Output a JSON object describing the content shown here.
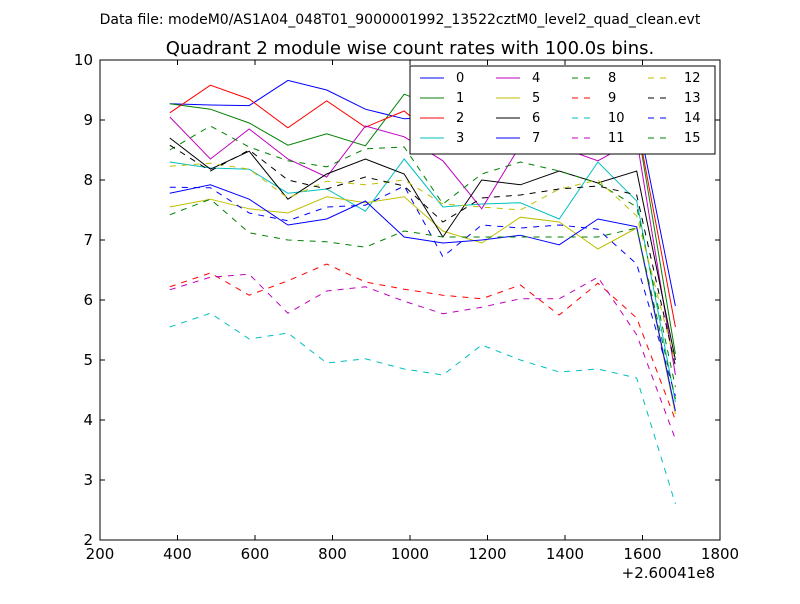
{
  "page": {
    "suptitle": "Data file: modeM0/AS1A04_048T01_9000001992_13522cztM0_level2_quad_clean.evt"
  },
  "chart_data": {
    "type": "line",
    "title": "Quadrant 2 module wise count rates with 100.0s bins.",
    "xlabel": "",
    "ylabel": "",
    "x_offset_label": "+2.60041e8",
    "xlim": [
      200,
      1800
    ],
    "ylim": [
      2,
      10
    ],
    "xticks": [
      200,
      400,
      600,
      800,
      1000,
      1200,
      1400,
      1600,
      1800
    ],
    "yticks": [
      2,
      3,
      4,
      5,
      6,
      7,
      8,
      9,
      10
    ],
    "grid": false,
    "legend": {
      "placement": "top-right",
      "columns": 4
    },
    "x": [
      380,
      485,
      585,
      685,
      785,
      885,
      985,
      1085,
      1185,
      1285,
      1385,
      1485,
      1585,
      1685
    ],
    "series": [
      {
        "name": "0",
        "color": "#0000ff",
        "dash": "solid",
        "values": [
          9.27,
          9.25,
          9.24,
          9.66,
          9.5,
          9.18,
          9.02,
          9.05,
          8.7,
          8.82,
          9.2,
          9.66,
          9.12,
          5.9
        ]
      },
      {
        "name": "1",
        "color": "#008000",
        "dash": "solid",
        "values": [
          9.27,
          9.18,
          8.95,
          8.58,
          8.77,
          8.57,
          9.43,
          9.18,
          8.53,
          8.95,
          9.0,
          8.9,
          8.95,
          5.1
        ]
      },
      {
        "name": "2",
        "color": "#ff0000",
        "dash": "solid",
        "values": [
          9.12,
          9.58,
          9.35,
          8.87,
          9.32,
          8.88,
          9.15,
          8.6,
          8.9,
          9.32,
          9.1,
          9.18,
          8.98,
          5.55
        ]
      },
      {
        "name": "3",
        "color": "#00bfbf",
        "dash": "solid",
        "values": [
          8.3,
          8.2,
          8.18,
          7.78,
          7.85,
          7.48,
          8.35,
          7.55,
          7.6,
          7.62,
          7.35,
          8.3,
          7.65,
          4.3
        ]
      },
      {
        "name": "4",
        "color": "#bf00bf",
        "dash": "solid",
        "values": [
          9.05,
          8.35,
          8.85,
          8.35,
          8.05,
          8.9,
          8.72,
          8.32,
          7.52,
          8.58,
          8.55,
          8.32,
          8.68,
          4.75
        ]
      },
      {
        "name": "5",
        "color": "#bfbf00",
        "dash": "solid",
        "values": [
          7.55,
          7.68,
          7.52,
          7.45,
          7.72,
          7.62,
          7.72,
          7.15,
          6.95,
          7.38,
          7.3,
          6.85,
          7.2,
          4.1
        ]
      },
      {
        "name": "6",
        "color": "#000000",
        "dash": "solid",
        "values": [
          8.7,
          8.18,
          8.48,
          7.68,
          8.1,
          8.35,
          8.1,
          7.05,
          8.0,
          7.92,
          8.15,
          7.95,
          8.15,
          5.0
        ]
      },
      {
        "name": "7",
        "color": "#0000ff",
        "dash": "solid",
        "values": [
          7.78,
          7.92,
          7.68,
          7.25,
          7.35,
          7.65,
          7.05,
          6.95,
          7.0,
          7.08,
          6.92,
          7.35,
          7.22,
          4.15
        ]
      },
      {
        "name": "8",
        "color": "#008000",
        "dash": "dashed",
        "values": [
          8.5,
          8.9,
          8.55,
          8.32,
          8.22,
          8.52,
          8.55,
          7.6,
          8.1,
          8.3,
          8.15,
          7.95,
          7.55,
          4.55
        ]
      },
      {
        "name": "9",
        "color": "#ff0000",
        "dash": "dashed",
        "values": [
          6.22,
          6.45,
          6.08,
          6.32,
          6.6,
          6.3,
          6.18,
          6.08,
          6.02,
          6.25,
          5.75,
          6.28,
          5.7,
          4.0
        ]
      },
      {
        "name": "10",
        "color": "#00bfbf",
        "dash": "dashed",
        "values": [
          5.55,
          5.78,
          5.35,
          5.45,
          4.95,
          5.02,
          4.85,
          4.75,
          5.25,
          5.0,
          4.8,
          4.85,
          4.7,
          2.6
        ]
      },
      {
        "name": "11",
        "color": "#bf00bf",
        "dash": "dashed",
        "values": [
          6.17,
          6.38,
          6.43,
          5.78,
          6.15,
          6.22,
          5.98,
          5.77,
          5.88,
          6.02,
          6.02,
          6.38,
          5.42,
          3.68
        ]
      },
      {
        "name": "12",
        "color": "#bfbf00",
        "dash": "dashed",
        "values": [
          8.23,
          8.28,
          8.18,
          7.7,
          7.98,
          7.92,
          8.0,
          7.6,
          7.55,
          7.5,
          7.85,
          8.0,
          7.4,
          4.95
        ]
      },
      {
        "name": "13",
        "color": "#000000",
        "dash": "dashed",
        "values": [
          8.58,
          8.15,
          8.5,
          8.0,
          7.85,
          8.05,
          7.9,
          7.3,
          7.7,
          7.75,
          7.85,
          7.9,
          7.75,
          4.9
        ]
      },
      {
        "name": "14",
        "color": "#0000ff",
        "dash": "dashed",
        "values": [
          7.88,
          7.87,
          7.45,
          7.32,
          7.55,
          7.58,
          7.9,
          6.72,
          7.25,
          7.2,
          7.25,
          7.18,
          6.6,
          4.4
        ]
      },
      {
        "name": "15",
        "color": "#008000",
        "dash": "dashed",
        "values": [
          7.42,
          7.68,
          7.12,
          7.0,
          6.97,
          6.88,
          7.15,
          7.05,
          7.05,
          7.05,
          7.05,
          7.05,
          7.2,
          4.35
        ]
      }
    ]
  }
}
